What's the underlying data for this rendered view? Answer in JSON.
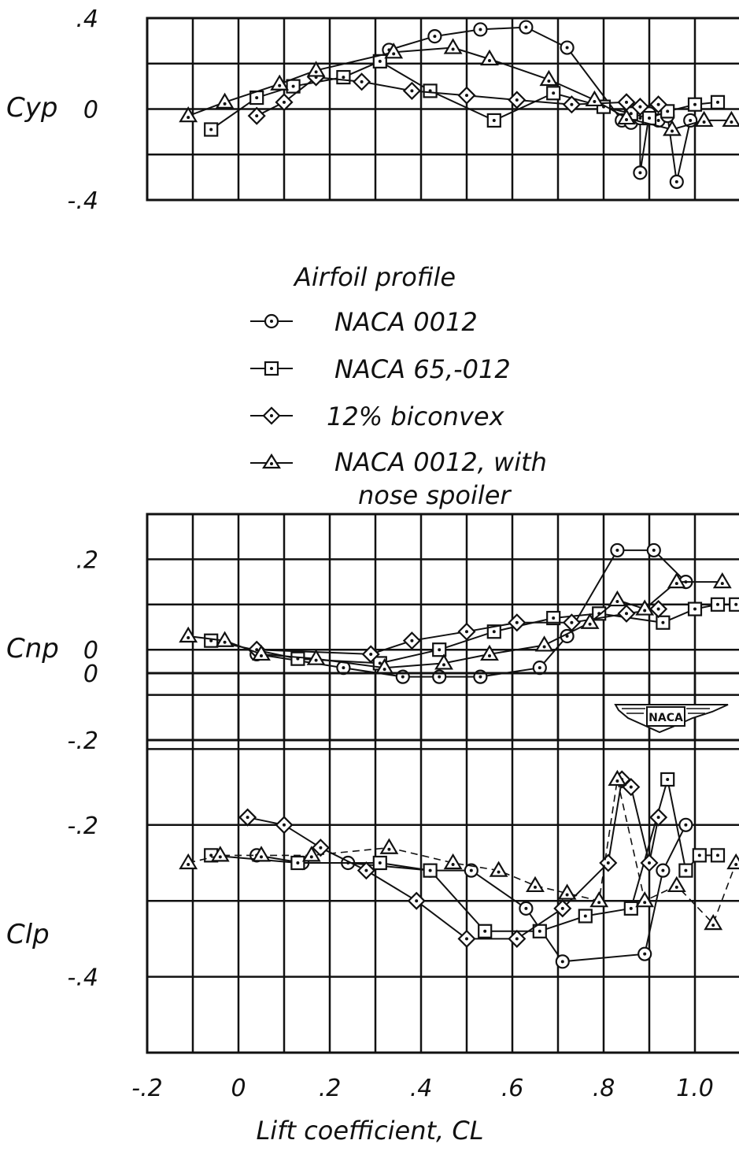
{
  "chart_data": [
    {
      "type": "line",
      "ylabel": "Cyp",
      "y_ticks": [
        ".4",
        "0",
        "-.4"
      ],
      "ylim": [
        -0.4,
        0.4
      ],
      "xlim": [
        -0.2,
        1.1
      ],
      "grid": true,
      "series": [
        {
          "name": "NACA 0012",
          "marker": "circle",
          "x": [
            0.84,
            0.86,
            0.88,
            0.9,
            0.92,
            0.94,
            0.88,
            0.96,
            0.99,
            0.72,
            0.63,
            0.53,
            0.43,
            0.33
          ],
          "y": [
            -0.05,
            -0.06,
            -0.04,
            -0.02,
            -0.05,
            -0.03,
            -0.28,
            -0.32,
            -0.05,
            0.27,
            0.36,
            0.35,
            0.32,
            0.26
          ]
        },
        {
          "name": "NACA 65,-012",
          "marker": "square",
          "x": [
            -0.06,
            0.04,
            0.12,
            0.23,
            0.31,
            0.42,
            0.56,
            0.69,
            0.8,
            0.86,
            0.9,
            0.94,
            1.0,
            1.05
          ],
          "y": [
            -0.09,
            0.05,
            0.1,
            0.14,
            0.21,
            0.08,
            -0.05,
            0.07,
            0.01,
            -0.02,
            -0.04,
            -0.01,
            0.02,
            0.03
          ]
        },
        {
          "name": "12% biconvex",
          "marker": "diamond",
          "x": [
            0.04,
            0.1,
            0.17,
            0.27,
            0.38,
            0.5,
            0.61,
            0.73,
            0.85,
            0.88,
            0.92
          ],
          "y": [
            -0.03,
            0.03,
            0.14,
            0.12,
            0.08,
            0.06,
            0.04,
            0.02,
            0.03,
            0.01,
            0.02
          ]
        },
        {
          "name": "NACA 0012, with nose spoiler",
          "marker": "triangle",
          "x": [
            -0.11,
            -0.03,
            0.09,
            0.17,
            0.34,
            0.47,
            0.55,
            0.68,
            0.78,
            0.85,
            0.95,
            1.02,
            1.08
          ],
          "y": [
            -0.03,
            0.03,
            0.11,
            0.17,
            0.25,
            0.27,
            0.22,
            0.13,
            0.04,
            -0.04,
            -0.09,
            -0.05,
            -0.05
          ]
        }
      ]
    },
    {
      "type": "line",
      "ylabel": "Cnp",
      "y_ticks": [
        ".2",
        "0",
        "-.2"
      ],
      "ylim": [
        -0.2,
        0.3
      ],
      "xlim": [
        -0.2,
        1.1
      ],
      "grid": true,
      "series": [
        {
          "name": "NACA 0012",
          "marker": "circle",
          "x": [
            0.04,
            0.23,
            0.36,
            0.44,
            0.53,
            0.66,
            0.72,
            0.83,
            0.91,
            0.98
          ],
          "y": [
            -0.01,
            -0.04,
            -0.06,
            -0.06,
            -0.06,
            -0.04,
            0.03,
            0.22,
            0.22,
            0.15
          ]
        },
        {
          "name": "NACA 65,-012",
          "marker": "square",
          "x": [
            -0.06,
            0.13,
            0.31,
            0.44,
            0.56,
            0.69,
            0.79,
            0.93,
            1.0,
            1.05,
            1.09
          ],
          "y": [
            0.02,
            -0.02,
            -0.03,
            0.0,
            0.04,
            0.07,
            0.08,
            0.06,
            0.09,
            0.1,
            0.1
          ]
        },
        {
          "name": "12% biconvex",
          "marker": "diamond",
          "x": [
            0.04,
            0.29,
            0.38,
            0.5,
            0.61,
            0.73,
            0.85,
            0.92
          ],
          "y": [
            0.0,
            -0.01,
            0.02,
            0.04,
            0.06,
            0.06,
            0.08,
            0.09
          ]
        },
        {
          "name": "NACA 0012, with nose spoiler",
          "marker": "triangle",
          "x": [
            -0.11,
            -0.03,
            0.05,
            0.17,
            0.32,
            0.45,
            0.55,
            0.67,
            0.77,
            0.83,
            0.89,
            0.96,
            1.06
          ],
          "y": [
            0.03,
            0.02,
            -0.01,
            -0.02,
            -0.04,
            -0.03,
            -0.01,
            0.01,
            0.06,
            0.11,
            0.09,
            0.15,
            0.15
          ]
        }
      ]
    },
    {
      "type": "line",
      "ylabel": "Clp",
      "y_ticks": [
        "0",
        "-.2",
        "-.4"
      ],
      "ylim": [
        -0.5,
        0.0
      ],
      "xlim": [
        -0.2,
        1.1
      ],
      "x_ticks": [
        "-.2",
        "0",
        ".2",
        ".4",
        ".6",
        ".8",
        "1.0"
      ],
      "xlabel": "Lift coefficient, CL",
      "grid": true,
      "series": [
        {
          "name": "NACA 0012",
          "marker": "circle",
          "x": [
            0.04,
            0.14,
            0.24,
            0.42,
            0.51,
            0.63,
            0.71,
            0.89,
            0.93,
            0.98
          ],
          "y": [
            -0.24,
            -0.25,
            -0.25,
            -0.26,
            -0.26,
            -0.31,
            -0.38,
            -0.37,
            -0.26,
            -0.2
          ]
        },
        {
          "name": "NACA 65,-012",
          "marker": "square",
          "x": [
            -0.06,
            0.13,
            0.31,
            0.42,
            0.54,
            0.66,
            0.76,
            0.86,
            0.94,
            0.98,
            1.01,
            1.05
          ],
          "y": [
            -0.24,
            -0.25,
            -0.25,
            -0.26,
            -0.34,
            -0.34,
            -0.32,
            -0.31,
            -0.14,
            -0.26,
            -0.24,
            -0.24
          ]
        },
        {
          "name": "12% biconvex",
          "marker": "diamond",
          "x": [
            0.02,
            0.1,
            0.18,
            0.28,
            0.39,
            0.5,
            0.61,
            0.71,
            0.81,
            0.84,
            0.86,
            0.9,
            0.92
          ],
          "y": [
            -0.19,
            -0.2,
            -0.23,
            -0.26,
            -0.3,
            -0.35,
            -0.35,
            -0.31,
            -0.25,
            -0.14,
            -0.15,
            -0.25,
            -0.19
          ]
        },
        {
          "name": "NACA 0012, with nose spoiler",
          "marker": "triangle",
          "x": [
            -0.11,
            -0.04,
            0.05,
            0.16,
            0.33,
            0.47,
            0.57,
            0.65,
            0.72,
            0.79,
            0.83,
            0.89,
            0.96,
            1.04,
            1.09
          ],
          "y": [
            -0.25,
            -0.24,
            -0.24,
            -0.24,
            -0.23,
            -0.25,
            -0.26,
            -0.28,
            -0.29,
            -0.3,
            -0.14,
            -0.3,
            -0.28,
            -0.33,
            -0.25
          ]
        }
      ]
    }
  ],
  "legend": {
    "title": "Airfoil profile",
    "entries": [
      "NACA 0012",
      "NACA 65,-012",
      "12% biconvex",
      "NACA 0012, with",
      "nose spoiler"
    ]
  },
  "logo": {
    "text": "NACA"
  }
}
